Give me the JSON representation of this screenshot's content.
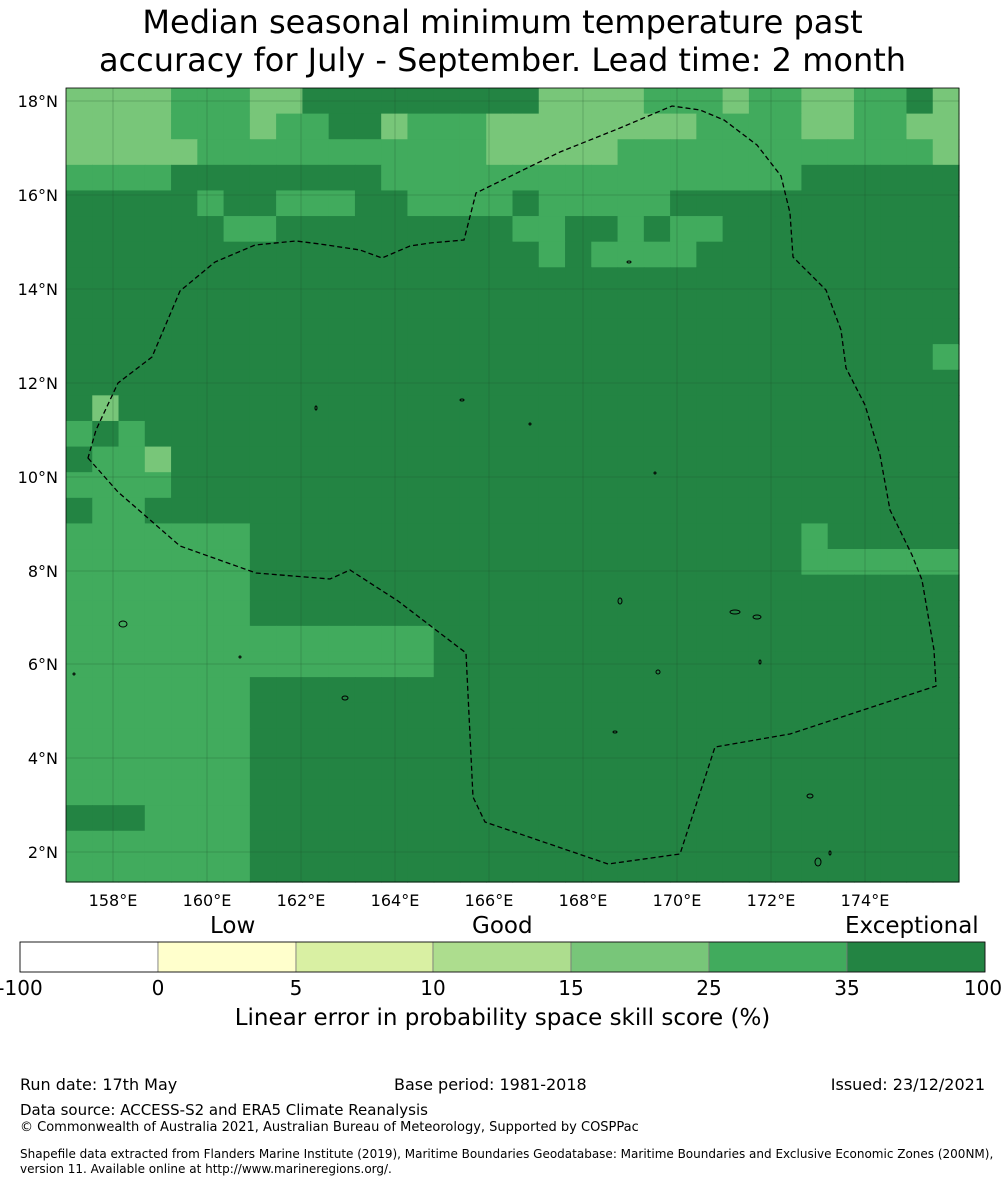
{
  "title": {
    "line1": "Median seasonal minimum temperature past",
    "line2": "accuracy for July - September. Lead time: 2 month"
  },
  "map": {
    "lat_labels": [
      "18°N",
      "16°N",
      "14°N",
      "12°N",
      "10°N",
      "8°N",
      "6°N",
      "4°N",
      "2°N"
    ],
    "lon_labels": [
      "158°E",
      "160°E",
      "162°E",
      "164°E",
      "166°E",
      "168°E",
      "170°E",
      "172°E",
      "174°E"
    ],
    "colors": {
      "c15_25": "#78c679",
      "c25_35": "#41ab5d",
      "c35_100": "#238443",
      "boundary": "#000000"
    },
    "grid": {
      "rows_from_top": [
        "3333222331111111113333222322332213",
        "3333222322113222333333332222332233",
        "3333322222222222333332222222222223",
        "2222111111112222222222222222111111",
        "1111121122211222212222211111111111",
        "1111112211111111122112122111111111",
        "1111111111111111112122221111111111",
        "1111111111111111111111111111111111",
        "1111111111111111111111111111111111",
        "1111111111111111111111111111111111",
        "1111111111111111111111111111111112",
        "1111111111111111111111111111111111",
        "1311111111111111111111111111111111",
        "2121111111111111111111111111111111",
        "1223111111111111111111111111111111",
        "2222111111111111111111111111111111",
        "1221111111111111111111111111111111",
        "2222222111111111111111111111211111",
        "2222222111111111111111111111222222",
        "2222222111111111111111111111111111",
        "2222222111111111111111111111111111",
        "2222222222222211111111111111111111",
        "2222222222222211111111111111111111",
        "2222222111111111111111111111111111",
        "2222222111111111111111111111111111",
        "2222222111111111111111111111111111",
        "2222222111111111111111111111111111",
        "2222222111111111111111111111111111",
        "1112222111111111111111111111111111",
        "2222222111111111111111111111111111",
        "2222222111111111111111111111111111"
      ]
    }
  },
  "colorbar": {
    "categories": [
      "Low",
      "Good",
      "Exceptional"
    ],
    "ticks": [
      "-100",
      "0",
      "5",
      "10",
      "15",
      "25",
      "35",
      "100"
    ],
    "bin_colors": [
      "#ffffff",
      "#ffffcc",
      "#d9f0a3",
      "#addd8e",
      "#78c679",
      "#41ab5d",
      "#238443"
    ],
    "label": "Linear error in probability space skill score (%)"
  },
  "footer": {
    "run_date": "Run date: 17th May",
    "base_period": "Base period: 1981-2018",
    "issued": "Issued: 23/12/2021",
    "data_source": "Data source: ACCESS-S2 and ERA5 Climate Reanalysis",
    "copyright": "© Commonwealth of Australia 2021, Australian Bureau of Meteorology, Supported by COSPPac",
    "shapefile_line1": "Shapefile data extracted from Flanders Marine Institute (2019), Maritime Boundaries Geodatabase: Maritime Boundaries and Exclusive Economic Zones (200NM),",
    "shapefile_line2": "version 11. Available online at http://www.marineregions.org/."
  }
}
